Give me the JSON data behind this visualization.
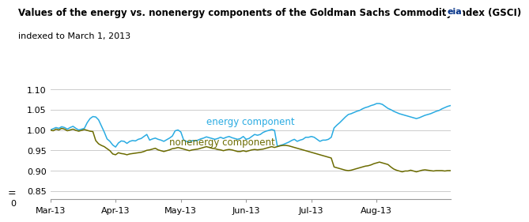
{
  "title_line1": "Values of the energy vs. nonenergy components of the Goldman Sachs Commodity Index (GSCI)",
  "title_line2": "indexed to March 1, 2013",
  "energy_color": "#29ABE2",
  "nonenergy_color": "#6B6B00",
  "label_energy": "energy component",
  "label_nonenergy": "nonenergy component",
  "ylim": [
    0.83,
    1.115
  ],
  "yticks": [
    0.85,
    0.9,
    0.95,
    1.0,
    1.05,
    1.1
  ],
  "xtick_labels": [
    "Mar-13",
    "Apr-13",
    "May-13",
    "Jun-13",
    "Jul-13",
    "Aug-13"
  ],
  "background_color": "#FFFFFF",
  "grid_color": "#CCCCCC",
  "energy_data": [
    1.0,
    1.003,
    1.006,
    1.004,
    1.008,
    1.006,
    1.002,
    1.006,
    1.009,
    1.004,
    1.0,
    1.002,
    1.004,
    1.018,
    1.028,
    1.033,
    1.032,
    1.025,
    1.01,
    0.995,
    0.978,
    0.972,
    0.963,
    0.958,
    0.968,
    0.973,
    0.972,
    0.967,
    0.972,
    0.974,
    0.973,
    0.977,
    0.979,
    0.984,
    0.989,
    0.975,
    0.978,
    0.98,
    0.977,
    0.975,
    0.972,
    0.976,
    0.98,
    0.985,
    0.998,
    1.0,
    0.995,
    0.975,
    0.972,
    0.97,
    0.974,
    0.973,
    0.975,
    0.978,
    0.98,
    0.983,
    0.981,
    0.979,
    0.977,
    0.979,
    0.982,
    0.979,
    0.982,
    0.984,
    0.981,
    0.979,
    0.977,
    0.979,
    0.984,
    0.977,
    0.979,
    0.984,
    0.989,
    0.987,
    0.989,
    0.994,
    0.997,
    0.999,
    1.001,
    0.999,
    0.96,
    0.962,
    0.964,
    0.967,
    0.97,
    0.974,
    0.977,
    0.972,
    0.975,
    0.977,
    0.982,
    0.982,
    0.984,
    0.982,
    0.977,
    0.972,
    0.975,
    0.975,
    0.977,
    0.982,
    1.005,
    1.012,
    1.018,
    1.025,
    1.032,
    1.038,
    1.04,
    1.043,
    1.046,
    1.048,
    1.052,
    1.055,
    1.057,
    1.06,
    1.062,
    1.065,
    1.065,
    1.063,
    1.058,
    1.053,
    1.05,
    1.046,
    1.043,
    1.04,
    1.038,
    1.036,
    1.034,
    1.032,
    1.03,
    1.028,
    1.03,
    1.033,
    1.036,
    1.038,
    1.04,
    1.043,
    1.046,
    1.048,
    1.052,
    1.055,
    1.058,
    1.06
  ],
  "nonenergy_data": [
    1.0,
    0.998,
    1.002,
    1.0,
    1.004,
    1.002,
    0.998,
    1.0,
    1.002,
    0.999,
    0.997,
    0.999,
    1.001,
    0.999,
    0.997,
    0.996,
    0.974,
    0.966,
    0.962,
    0.959,
    0.954,
    0.949,
    0.941,
    0.939,
    0.944,
    0.942,
    0.941,
    0.939,
    0.941,
    0.942,
    0.943,
    0.944,
    0.945,
    0.947,
    0.95,
    0.951,
    0.953,
    0.955,
    0.951,
    0.949,
    0.947,
    0.949,
    0.951,
    0.954,
    0.955,
    0.957,
    0.955,
    0.953,
    0.951,
    0.949,
    0.951,
    0.952,
    0.953,
    0.955,
    0.957,
    0.959,
    0.957,
    0.955,
    0.954,
    0.952,
    0.951,
    0.949,
    0.951,
    0.952,
    0.951,
    0.949,
    0.947,
    0.947,
    0.949,
    0.947,
    0.949,
    0.951,
    0.952,
    0.951,
    0.952,
    0.953,
    0.955,
    0.957,
    0.959,
    0.957,
    0.959,
    0.961,
    0.962,
    0.962,
    0.961,
    0.959,
    0.957,
    0.955,
    0.953,
    0.951,
    0.949,
    0.947,
    0.945,
    0.943,
    0.941,
    0.939,
    0.937,
    0.935,
    0.933,
    0.931,
    0.909,
    0.907,
    0.905,
    0.903,
    0.901,
    0.9,
    0.901,
    0.903,
    0.905,
    0.907,
    0.909,
    0.911,
    0.912,
    0.914,
    0.917,
    0.919,
    0.921,
    0.919,
    0.917,
    0.915,
    0.909,
    0.904,
    0.901,
    0.899,
    0.897,
    0.899,
    0.899,
    0.901,
    0.899,
    0.897,
    0.899,
    0.901,
    0.902,
    0.901,
    0.9,
    0.899,
    0.9,
    0.9,
    0.9,
    0.899,
    0.9,
    0.9
  ]
}
